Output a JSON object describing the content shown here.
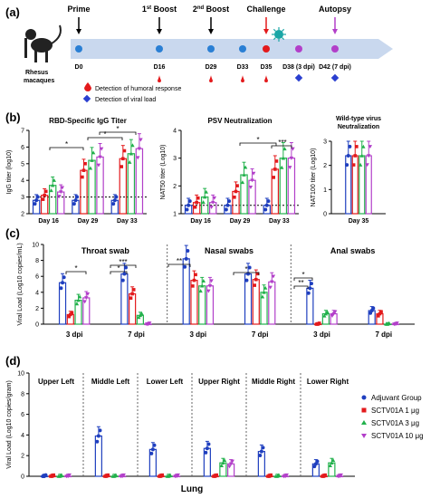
{
  "colors": {
    "adjuvant": "#1f3fbf",
    "g1": "#e31a1c",
    "g3": "#22b14c",
    "g10": "#b23fc9",
    "timeline": "#c9d8ee",
    "bars_d": [
      "#1f3fbf",
      "#e31a1c",
      "#22b14c",
      "#b23fc9"
    ]
  },
  "panel_a": {
    "label": "(a)",
    "animal": "Rhesus macaques",
    "events": [
      {
        "title": "Prime",
        "day": "D0"
      },
      {
        "title": "1st Boost",
        "day": "D16"
      },
      {
        "title": "2nd Boost",
        "day": "D29"
      },
      {
        "title": "",
        "day": "D33"
      },
      {
        "title": "Challenge",
        "day": "D35"
      },
      {
        "title": "",
        "day": "D38 (3 dpi)"
      },
      {
        "title": "Autopsy",
        "day": "D42 (7 dpi)"
      }
    ],
    "legend_humoral": "Detection of humoral response",
    "legend_viral": "Detection of viral load"
  },
  "chart_data": [
    {
      "panel": "(b)",
      "type": "bar",
      "title": "RBD-Specific IgG Titer",
      "ylabel": "IgG titer (log10)",
      "ylim": [
        2,
        7
      ],
      "categories": [
        "Day 16",
        "Day 29",
        "Day 33"
      ],
      "series": [
        {
          "name": "Adjuvant Group",
          "values": [
            2.8,
            2.8,
            2.8
          ]
        },
        {
          "name": "SCTV01A 1 µg",
          "values": [
            3.1,
            4.6,
            5.3
          ]
        },
        {
          "name": "SCTV01A 3 µg",
          "values": [
            3.7,
            5.2,
            5.6
          ]
        },
        {
          "name": "SCTV01A 10 µg",
          "values": [
            3.3,
            5.4,
            5.9
          ]
        }
      ],
      "significance": [
        "*",
        "*",
        "*"
      ]
    },
    {
      "panel": "(b)",
      "type": "bar",
      "title": "PSV Neutralization",
      "ylabel": "NAT50 titer (Log10)",
      "ylim": [
        1,
        4
      ],
      "categories": [
        "Day 16",
        "Day 29",
        "Day 33"
      ],
      "series": [
        {
          "name": "Adjuvant Group",
          "values": [
            1.3,
            1.3,
            1.3
          ]
        },
        {
          "name": "SCTV01A 1 µg",
          "values": [
            1.4,
            1.8,
            2.6
          ]
        },
        {
          "name": "SCTV01A 3 µg",
          "values": [
            1.6,
            2.4,
            3.0
          ]
        },
        {
          "name": "SCTV01A 10 µg",
          "values": [
            1.4,
            2.2,
            3.0
          ]
        }
      ],
      "significance": [
        "*",
        "***"
      ]
    },
    {
      "panel": "(b)",
      "type": "bar",
      "title": "Wild-type virus Neutralization",
      "ylabel": "NAT100 titer (Log10)",
      "ylim": [
        0,
        3
      ],
      "categories": [
        "Day 35"
      ],
      "series": [
        {
          "name": "Adjuvant Group",
          "values": [
            2.4
          ]
        },
        {
          "name": "SCTV01A 1 µg",
          "values": [
            2.4
          ]
        },
        {
          "name": "SCTV01A 3 µg",
          "values": [
            2.4
          ]
        },
        {
          "name": "SCTV01A 10 µg",
          "values": [
            2.4
          ]
        }
      ]
    },
    {
      "panel": "(c)",
      "type": "bar",
      "ylabel": "Viral Load (Log10 copies/mL)",
      "ylim": [
        0,
        10
      ],
      "groups": [
        "Throat swab",
        "Nasal swabs",
        "Anal swabs"
      ],
      "categories": [
        "3 dpi",
        "7 dpi",
        "3 dpi",
        "7 dpi",
        "3 dpi",
        "7 dpi"
      ],
      "series": [
        {
          "name": "Adjuvant Group",
          "values": [
            5.2,
            6.3,
            8.2,
            6.3,
            4.5,
            1.7
          ]
        },
        {
          "name": "SCTV01A 1 µg",
          "values": [
            1.2,
            3.8,
            5.5,
            5.6,
            0.0,
            1.3
          ]
        },
        {
          "name": "SCTV01A 3 µg",
          "values": [
            3.0,
            1.1,
            4.8,
            4.0,
            1.3,
            0.0
          ]
        },
        {
          "name": "SCTV01A 10 µg",
          "values": [
            3.3,
            0.0,
            4.8,
            5.3,
            1.3,
            0.0
          ]
        }
      ],
      "significance": [
        "*",
        "***",
        "*",
        "**",
        "*",
        "*",
        "**"
      ]
    },
    {
      "panel": "(d)",
      "type": "bar",
      "ylabel": "Viral Load (Log10 copies/gram)",
      "xlabel": "Lung",
      "ylim": [
        0,
        10
      ],
      "categories": [
        "Upper Left",
        "Middle Left",
        "Lower Left",
        "Upper Right",
        "Middle Right",
        "Lower Right"
      ],
      "series": [
        {
          "name": "Adjuvant Group",
          "values": [
            0,
            3.9,
            2.6,
            2.7,
            2.4,
            1.2
          ]
        },
        {
          "name": "SCTV01A 1 µg",
          "values": [
            0,
            0,
            0,
            0,
            0,
            0
          ]
        },
        {
          "name": "SCTV01A 3 µg",
          "values": [
            0,
            0,
            0,
            1.3,
            0,
            1.3
          ]
        },
        {
          "name": "SCTV01A 10 µg",
          "values": [
            0,
            0,
            0,
            1.2,
            0,
            0
          ]
        }
      ]
    }
  ],
  "text": {
    "b_label": "(b)",
    "c_label": "(c)",
    "d_label": "(d)",
    "boost_sup": "st",
    "boost2_sup": "nd",
    "ytick_b1": [
      "2",
      "3",
      "4",
      "5",
      "6",
      "7"
    ],
    "ytick_b2": [
      "1",
      "2",
      "3",
      "4"
    ],
    "ytick_b3": [
      "0",
      "1",
      "2",
      "3"
    ],
    "ytick_cd": [
      "0",
      "2",
      "4",
      "6",
      "8",
      "10"
    ],
    "legend": [
      "Adjuvant Group",
      "SCTV01A 1 μg",
      "SCTV01A 3 μg",
      "SCTV01A 10 μg"
    ]
  }
}
